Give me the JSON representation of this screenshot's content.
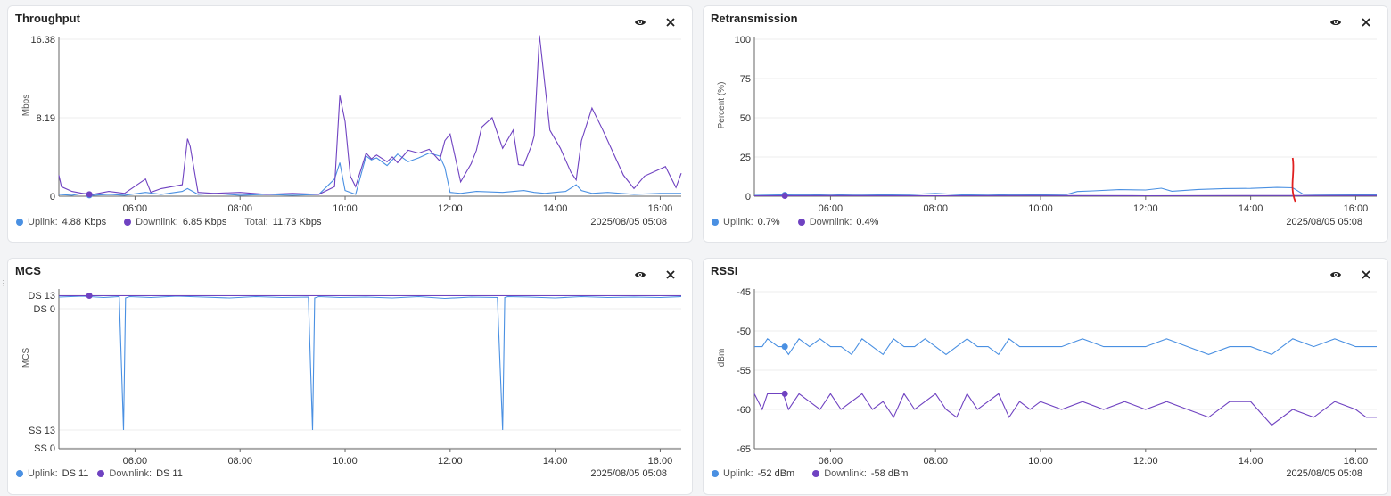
{
  "colors": {
    "uplink": "#4a90e2",
    "downlink": "#6f42c1",
    "axis": "#666666",
    "grid": "#eeeeee",
    "annotation": "#e02020"
  },
  "panels": {
    "throughput": {
      "title": "Throughput",
      "legend": {
        "uplink_label": "Uplink:",
        "uplink_value": "4.88 Kbps",
        "downlink_label": "Downlink:",
        "downlink_value": "6.85 Kbps",
        "total_label": "Total:",
        "total_value": "11.73 Kbps"
      },
      "timestamp": "2025/08/05 05:08"
    },
    "retransmission": {
      "title": "Retransmission",
      "legend": {
        "uplink_label": "Uplink:",
        "uplink_value": "0.7%",
        "downlink_label": "Downlink:",
        "downlink_value": "0.4%"
      },
      "timestamp": "2025/08/05 05:08"
    },
    "mcs": {
      "title": "MCS",
      "legend": {
        "uplink_label": "Uplink:",
        "uplink_value": "DS 11",
        "downlink_label": "Downlink:",
        "downlink_value": "DS 11"
      },
      "timestamp": "2025/08/05 05:08"
    },
    "rssi": {
      "title": "RSSI",
      "legend": {
        "uplink_label": "Uplink:",
        "uplink_value": "-52 dBm",
        "downlink_label": "Downlink:",
        "downlink_value": "-58 dBm"
      },
      "timestamp": "2025/08/05 05:08"
    }
  },
  "icons": {
    "visibility": "eye-icon",
    "close": "close-icon"
  },
  "chart_data": [
    {
      "type": "line",
      "title": "Throughput",
      "ylabel": "Mbps",
      "xlabel": "",
      "x_ticks": [
        "06:00",
        "08:00",
        "10:00",
        "12:00",
        "14:00",
        "16:00"
      ],
      "x_tick_hours": [
        6,
        8,
        10,
        12,
        14,
        16
      ],
      "xlim": [
        4.55,
        16.4
      ],
      "y_ticks": [
        "0",
        "8.19",
        "16.38"
      ],
      "y_tick_values": [
        0,
        8.19,
        16.38
      ],
      "ylim": [
        0,
        16.38
      ],
      "grid": "horizontal",
      "series": [
        {
          "name": "Uplink",
          "x": [
            4.55,
            4.8,
            5.0,
            5.2,
            5.5,
            5.8,
            6.2,
            6.5,
            6.9,
            7.0,
            7.2,
            7.5,
            8.0,
            8.5,
            9.0,
            9.5,
            9.8,
            9.9,
            10.0,
            10.2,
            10.4,
            10.5,
            10.6,
            10.8,
            11.0,
            11.2,
            11.4,
            11.6,
            11.8,
            11.9,
            12.0,
            12.2,
            12.5,
            13.0,
            13.4,
            13.6,
            13.8,
            14.2,
            14.4,
            14.5,
            14.7,
            15.0,
            15.5,
            16.0,
            16.4
          ],
          "y": [
            0.2,
            0.1,
            0.3,
            0.1,
            0.2,
            0.1,
            0.4,
            0.2,
            0.5,
            0.8,
            0.2,
            0.3,
            0.1,
            0.2,
            0.1,
            0.2,
            1.8,
            3.5,
            0.6,
            0.2,
            4.2,
            3.8,
            4.0,
            3.2,
            4.4,
            3.6,
            4.0,
            4.5,
            4.2,
            3.0,
            0.4,
            0.3,
            0.5,
            0.4,
            0.6,
            0.4,
            0.3,
            0.5,
            1.2,
            0.6,
            0.3,
            0.4,
            0.2,
            0.3,
            0.3
          ]
        },
        {
          "name": "Downlink",
          "x": [
            4.55,
            4.6,
            4.8,
            5.0,
            5.2,
            5.5,
            5.8,
            6.2,
            6.3,
            6.5,
            6.9,
            7.0,
            7.05,
            7.2,
            7.5,
            8.0,
            8.5,
            9.0,
            9.5,
            9.8,
            9.9,
            10.0,
            10.1,
            10.2,
            10.4,
            10.5,
            10.6,
            10.8,
            10.9,
            11.0,
            11.2,
            11.4,
            11.6,
            11.8,
            11.9,
            12.0,
            12.2,
            12.4,
            12.5,
            12.6,
            12.8,
            13.0,
            13.2,
            13.3,
            13.4,
            13.5,
            13.55,
            13.6,
            13.7,
            13.9,
            14.1,
            14.3,
            14.4,
            14.5,
            14.7,
            14.9,
            15.1,
            15.3,
            15.5,
            15.7,
            15.9,
            16.1,
            16.3,
            16.4
          ],
          "y": [
            2.2,
            1.0,
            0.5,
            0.3,
            0.2,
            0.5,
            0.3,
            1.8,
            0.4,
            0.8,
            1.2,
            6.0,
            5.2,
            0.4,
            0.3,
            0.4,
            0.2,
            0.3,
            0.2,
            1.0,
            10.5,
            7.8,
            2.1,
            1.0,
            4.5,
            3.9,
            4.3,
            3.6,
            4.1,
            3.5,
            4.8,
            4.5,
            4.9,
            3.7,
            5.8,
            6.5,
            1.5,
            3.4,
            4.8,
            7.2,
            8.2,
            5.0,
            6.9,
            3.3,
            3.2,
            4.6,
            5.3,
            6.3,
            16.8,
            6.9,
            5.0,
            2.5,
            1.7,
            5.8,
            9.2,
            7.0,
            4.6,
            2.2,
            0.8,
            2.1,
            2.6,
            3.1,
            0.9,
            2.4
          ]
        }
      ]
    },
    {
      "type": "line",
      "title": "Retransmission",
      "ylabel": "Percent (%)",
      "xlabel": "",
      "x_ticks": [
        "06:00",
        "08:00",
        "10:00",
        "12:00",
        "14:00",
        "16:00"
      ],
      "x_tick_hours": [
        6,
        8,
        10,
        12,
        14,
        16
      ],
      "xlim": [
        4.55,
        16.4
      ],
      "y_ticks": [
        "0",
        "25",
        "50",
        "75",
        "100"
      ],
      "y_tick_values": [
        0,
        25,
        50,
        75,
        100
      ],
      "ylim": [
        0,
        100
      ],
      "grid": "horizontal",
      "series": [
        {
          "name": "Uplink",
          "x": [
            4.55,
            5.0,
            5.5,
            6.0,
            6.5,
            7.0,
            7.5,
            8.0,
            8.5,
            9.0,
            9.5,
            10.0,
            10.5,
            10.7,
            11.0,
            11.5,
            12.0,
            12.3,
            12.5,
            13.0,
            13.5,
            14.0,
            14.5,
            14.8,
            15.0,
            15.5,
            16.0,
            16.4
          ],
          "y": [
            0.5,
            0.8,
            1.0,
            0.7,
            1.2,
            0.8,
            1.0,
            1.8,
            0.9,
            0.7,
            1.0,
            0.8,
            1.2,
            3.0,
            3.4,
            4.2,
            4.0,
            5.1,
            3.2,
            4.3,
            4.9,
            5.0,
            5.6,
            5.4,
            1.3,
            1.0,
            0.9,
            0.8
          ]
        },
        {
          "name": "Downlink",
          "x": [
            4.55,
            6.0,
            8.0,
            10.0,
            12.0,
            14.0,
            16.4
          ],
          "y": [
            0.3,
            0.4,
            0.3,
            0.4,
            0.3,
            0.4,
            0.4
          ]
        }
      ]
    },
    {
      "type": "line",
      "title": "MCS",
      "ylabel": "MCS",
      "xlabel": "",
      "x_ticks": [
        "06:00",
        "08:00",
        "10:00",
        "12:00",
        "14:00",
        "16:00"
      ],
      "x_tick_hours": [
        6,
        8,
        10,
        12,
        14,
        16
      ],
      "xlim": [
        4.55,
        16.4
      ],
      "y_ticks": [
        "SS 0",
        "SS 13",
        "DS 0",
        "DS 13"
      ],
      "ylim": [
        "SS 0",
        "DS 13"
      ],
      "grid": "horizontal",
      "series": [
        {
          "name": "Uplink",
          "x": [
            4.55,
            5.0,
            5.4,
            5.7,
            5.78,
            5.82,
            5.9,
            6.3,
            6.8,
            7.3,
            7.8,
            8.3,
            8.8,
            9.3,
            9.38,
            9.42,
            9.5,
            9.9,
            10.4,
            10.9,
            11.4,
            11.9,
            12.4,
            12.9,
            13.0,
            13.04,
            13.1,
            13.5,
            14.0,
            14.5,
            15.0,
            15.5,
            16.0,
            16.4
          ],
          "y": [
            12.6,
            12.8,
            12.5,
            12.7,
            -10,
            12.4,
            12.7,
            12.5,
            12.8,
            12.6,
            12.4,
            12.7,
            12.5,
            12.6,
            -10,
            12.4,
            12.7,
            12.5,
            12.6,
            12.4,
            12.7,
            12.3,
            12.6,
            12.5,
            -10,
            12.5,
            12.7,
            12.6,
            12.4,
            12.7,
            12.5,
            12.6,
            12.5,
            12.7
          ]
        },
        {
          "name": "Downlink",
          "x": [
            4.55,
            16.4
          ],
          "y": [
            12.9,
            12.9
          ]
        }
      ]
    },
    {
      "type": "line",
      "title": "RSSI",
      "ylabel": "dBm",
      "xlabel": "",
      "x_ticks": [
        "06:00",
        "08:00",
        "10:00",
        "12:00",
        "14:00",
        "16:00"
      ],
      "x_tick_hours": [
        6,
        8,
        10,
        12,
        14,
        16
      ],
      "xlim": [
        4.55,
        16.4
      ],
      "y_ticks": [
        "-45",
        "-50",
        "-55",
        "-60",
        "-65"
      ],
      "y_tick_values": [
        -45,
        -50,
        -55,
        -60,
        -65
      ],
      "ylim": [
        -65,
        -45
      ],
      "grid": "horizontal",
      "series": [
        {
          "name": "Uplink",
          "x": [
            4.55,
            4.7,
            4.8,
            5.0,
            5.1,
            5.2,
            5.4,
            5.6,
            5.8,
            6.0,
            6.2,
            6.4,
            6.6,
            6.8,
            7.0,
            7.2,
            7.4,
            7.6,
            7.8,
            8.0,
            8.2,
            8.4,
            8.6,
            8.8,
            9.0,
            9.2,
            9.4,
            9.6,
            9.8,
            10.0,
            10.4,
            10.8,
            11.2,
            11.6,
            12.0,
            12.4,
            12.8,
            13.2,
            13.6,
            14.0,
            14.4,
            14.8,
            15.2,
            15.6,
            16.0,
            16.4
          ],
          "y": [
            -52,
            -52,
            -51,
            -52,
            -52,
            -53,
            -51,
            -52,
            -51,
            -52,
            -52,
            -53,
            -51,
            -52,
            -53,
            -51,
            -52,
            -52,
            -51,
            -52,
            -53,
            -52,
            -51,
            -52,
            -52,
            -53,
            -51,
            -52,
            -52,
            -52,
            -52,
            -51,
            -52,
            -52,
            -52,
            -51,
            -52,
            -53,
            -52,
            -52,
            -53,
            -51,
            -52,
            -51,
            -52,
            -52
          ]
        },
        {
          "name": "Downlink",
          "x": [
            4.55,
            4.7,
            4.8,
            5.0,
            5.1,
            5.2,
            5.4,
            5.6,
            5.8,
            6.0,
            6.2,
            6.4,
            6.6,
            6.8,
            7.0,
            7.2,
            7.4,
            7.6,
            7.8,
            8.0,
            8.2,
            8.4,
            8.6,
            8.8,
            9.0,
            9.2,
            9.4,
            9.6,
            9.8,
            10.0,
            10.4,
            10.8,
            11.2,
            11.6,
            12.0,
            12.4,
            12.8,
            13.2,
            13.6,
            14.0,
            14.4,
            14.8,
            15.2,
            15.6,
            16.0,
            16.2,
            16.4
          ],
          "y": [
            -58,
            -60,
            -58,
            -58,
            -58,
            -60,
            -58,
            -59,
            -60,
            -58,
            -60,
            -59,
            -58,
            -60,
            -59,
            -61,
            -58,
            -60,
            -59,
            -58,
            -60,
            -61,
            -58,
            -60,
            -59,
            -58,
            -61,
            -59,
            -60,
            -59,
            -60,
            -59,
            -60,
            -59,
            -60,
            -59,
            -60,
            -61,
            -59,
            -59,
            -62,
            -60,
            -61,
            -59,
            -60,
            -61,
            -61
          ]
        }
      ]
    }
  ]
}
